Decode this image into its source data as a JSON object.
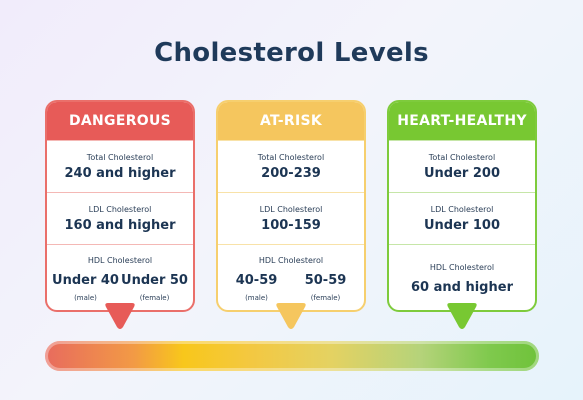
{
  "title": "Cholesterol Levels",
  "colors": {
    "dangerous": "#e75b58",
    "dangerous_border": "#ea6f6a",
    "dangerous_divider": "#f4b8b5",
    "atrisk": "#f5c65e",
    "atrisk_border": "#f6cf6e",
    "atrisk_divider": "#f8e2a8",
    "healthy": "#78c832",
    "healthy_border": "#7ecb3c",
    "healthy_divider": "#c6e6a8"
  },
  "columns": [
    {
      "header": "DANGEROUS",
      "total_label": "Total Cholesterol",
      "total_value": "240 and higher",
      "ldl_label": "LDL Cholesterol",
      "ldl_value": "160 and higher",
      "hdl_label": "HDL Cholesterol",
      "hdl_male_value": "Under 40",
      "hdl_male_label": "(male)",
      "hdl_female_value": "Under 50",
      "hdl_female_label": "(female)"
    },
    {
      "header": "AT-RISK",
      "total_label": "Total Cholesterol",
      "total_value": "200-239",
      "ldl_label": "LDL Cholesterol",
      "ldl_value": "100-159",
      "hdl_label": "HDL Cholesterol",
      "hdl_male_value": "40-59",
      "hdl_male_label": "(male)",
      "hdl_female_value": "50-59",
      "hdl_female_label": "(female)"
    },
    {
      "header": "HEART-HEALTHY",
      "total_label": "Total Cholesterol",
      "total_value": "Under 200",
      "ldl_label": "LDL Cholesterol",
      "ldl_value": "Under 100",
      "hdl_label": "HDL Cholesterol",
      "hdl_value": "60 and higher"
    }
  ]
}
